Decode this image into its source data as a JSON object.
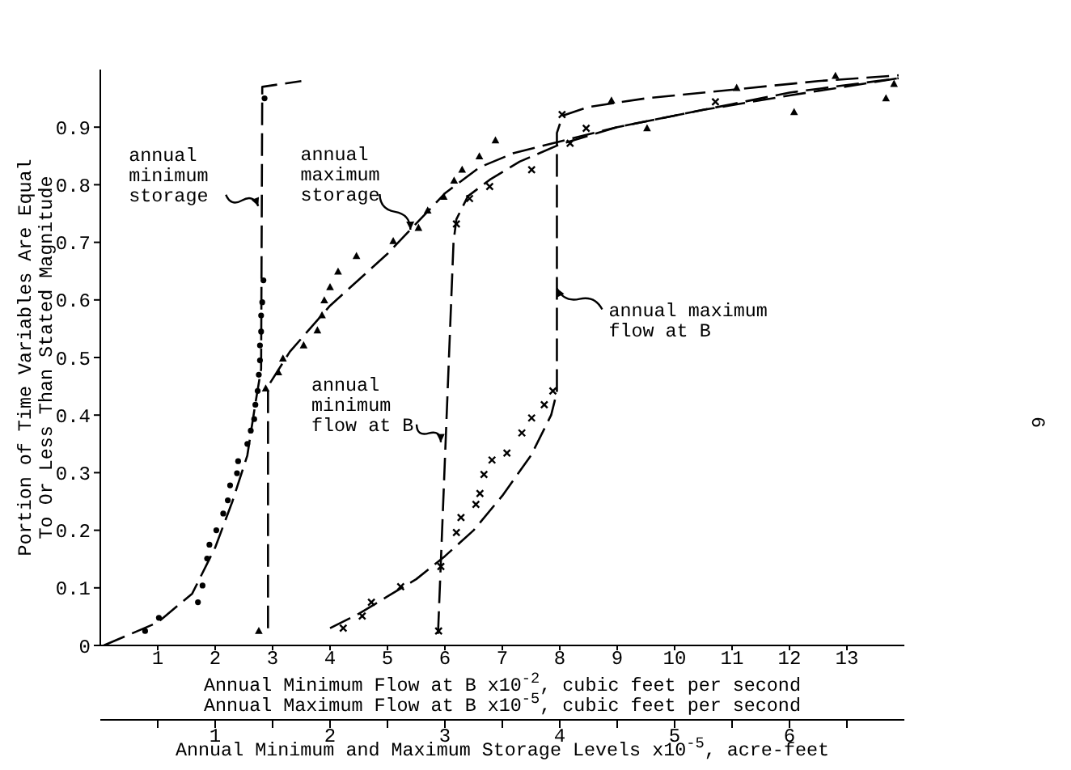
{
  "chart_data": {
    "type": "line",
    "xlabel": "Annual Minimum Flow at B x10$^{-2}$, cubic feet per second\nAnnual Maximum Flow at B x10$^{-5}$, cubic feet per second",
    "x2label": "Annual Minimum and Maximum Storage Levels x10$^{-5}$, acre-feet",
    "ylabel": "Portion of Time Variables Are Equal\nTo Or Less Than Stated Magnitude",
    "xlim": [
      0,
      14
    ],
    "xticks": [
      1,
      2,
      3,
      4,
      5,
      6,
      7,
      8,
      9,
      10,
      11,
      12,
      13
    ],
    "x2lim": [
      0,
      7
    ],
    "x2ticks": [
      {
        "value": 0.5,
        "label": null
      },
      1,
      {
        "value": 1.5,
        "label": null
      },
      2,
      {
        "value": 2.5,
        "label": null
      },
      3,
      {
        "value": 3.5,
        "label": null
      },
      4,
      {
        "value": 4.5,
        "label": null
      },
      5,
      {
        "value": 5.5,
        "label": null
      },
      6,
      {
        "value": 6.5,
        "label": null
      }
    ],
    "ylim": [
      0,
      1
    ],
    "yticks": [
      0,
      0.1,
      0.2,
      0.3,
      0.4,
      0.5,
      0.6,
      0.7,
      0.8,
      0.9
    ],
    "series": [
      {
        "axis": "x2",
        "color": "#000000",
        "line_style": "dashed",
        "marker": "none",
        "x": [
          0.03,
          0.5,
          0.8,
          1.0,
          1.15,
          1.28,
          1.35,
          1.4,
          1.41,
          1.75
        ],
        "values": [
          0.0,
          0.04,
          0.09,
          0.17,
          0.25,
          0.33,
          0.42,
          0.48,
          0.97,
          0.98
        ]
      },
      {
        "axis": "x2",
        "color": "#000000",
        "line_style": "dashed",
        "marker": "none",
        "x": [
          1.46,
          1.46,
          1.65,
          2.0,
          2.5,
          3.0,
          3.3,
          3.6,
          4.0,
          4.5,
          5.25,
          6.0,
          6.95
        ],
        "values": [
          0.03,
          0.45,
          0.51,
          0.59,
          0.68,
          0.785,
          0.83,
          0.855,
          0.875,
          0.9,
          0.93,
          0.955,
          0.985
        ]
      },
      {
        "color": "#000000",
        "line_style": "dashed",
        "marker": "none",
        "x": [
          5.88,
          6.15,
          6.2,
          6.4,
          6.8,
          7.3,
          8.0,
          9.0,
          10.0,
          11.0,
          12.0,
          13.9
        ],
        "values": [
          0.02,
          0.7,
          0.74,
          0.78,
          0.81,
          0.84,
          0.87,
          0.9,
          0.92,
          0.94,
          0.96,
          0.985
        ]
      },
      {
        "color": "#000000",
        "line_style": "dashed",
        "marker": "none",
        "x": [
          4.0,
          4.5,
          5.0,
          5.5,
          6.0,
          6.5,
          7.0,
          7.5,
          7.85,
          7.95,
          7.95,
          8.05,
          8.5,
          9.5,
          11.0,
          12.5,
          13.9
        ],
        "values": [
          0.03,
          0.055,
          0.085,
          0.115,
          0.155,
          0.2,
          0.26,
          0.33,
          0.4,
          0.44,
          0.89,
          0.92,
          0.935,
          0.95,
          0.965,
          0.98,
          0.99
        ]
      },
      {
        "type": "scatter",
        "axis": "x2",
        "color": "#000000",
        "marker": "circle",
        "x": [
          0.39,
          0.51,
          0.85,
          0.89,
          0.93,
          0.95,
          1.01,
          1.07,
          1.11,
          1.13,
          1.19,
          1.2,
          1.28,
          1.31,
          1.34,
          1.35,
          1.37,
          1.38,
          1.39,
          1.39,
          1.4,
          1.4,
          1.41,
          1.42,
          1.43
        ],
        "values": [
          0.025,
          0.048,
          0.075,
          0.104,
          0.151,
          0.175,
          0.2,
          0.229,
          0.252,
          0.278,
          0.299,
          0.32,
          0.35,
          0.373,
          0.393,
          0.418,
          0.442,
          0.47,
          0.495,
          0.521,
          0.545,
          0.573,
          0.596,
          0.634,
          0.95
        ]
      },
      {
        "type": "scatter",
        "axis": "x2",
        "color": "#000000",
        "marker": "triangle",
        "x": [
          1.38,
          1.44,
          1.55,
          1.59,
          1.77,
          1.89,
          1.93,
          1.95,
          2.0,
          2.07,
          2.23,
          2.55,
          2.77,
          2.85,
          2.99,
          3.08,
          3.15,
          3.3,
          3.44,
          4.45,
          4.76,
          5.54,
          6.04,
          6.4,
          6.84,
          6.91
        ],
        "values": [
          0.025,
          0.446,
          0.474,
          0.498,
          0.521,
          0.547,
          0.573,
          0.599,
          0.622,
          0.649,
          0.676,
          0.702,
          0.725,
          0.755,
          0.779,
          0.807,
          0.826,
          0.849,
          0.877,
          0.946,
          0.898,
          0.968,
          0.926,
          0.989,
          0.95,
          0.975
        ]
      },
      {
        "type": "scatter",
        "color": "#000000",
        "marker": "cross",
        "x": [
          5.89,
          4.23,
          4.56,
          4.72,
          5.23,
          5.93,
          6.2,
          6.28,
          6.54,
          6.61,
          6.68,
          6.82,
          7.08,
          7.34,
          7.51,
          7.73,
          7.88,
          6.2,
          6.43,
          6.78,
          7.51,
          8.18,
          8.46,
          8.04,
          10.71
        ],
        "values": [
          0.025,
          0.03,
          0.051,
          0.075,
          0.102,
          0.137,
          0.196,
          0.222,
          0.245,
          0.264,
          0.297,
          0.322,
          0.334,
          0.369,
          0.395,
          0.418,
          0.442,
          0.732,
          0.776,
          0.797,
          0.826,
          0.872,
          0.898,
          0.922,
          0.944
        ]
      }
    ],
    "annotations": [
      {
        "text": "annual\nminimum\nstorage",
        "x": 2.75,
        "y": 0.763
      },
      {
        "text": "annual\nmaximum\nstorage",
        "x": 5.4,
        "y": 0.722
      },
      {
        "text": "annual\nminimum\nflow at B",
        "x": 5.93,
        "y": 0.353
      },
      {
        "text": "annual maximum\nflow at B",
        "x": 7.95,
        "y": 0.62
      },
      "6"
    ]
  }
}
